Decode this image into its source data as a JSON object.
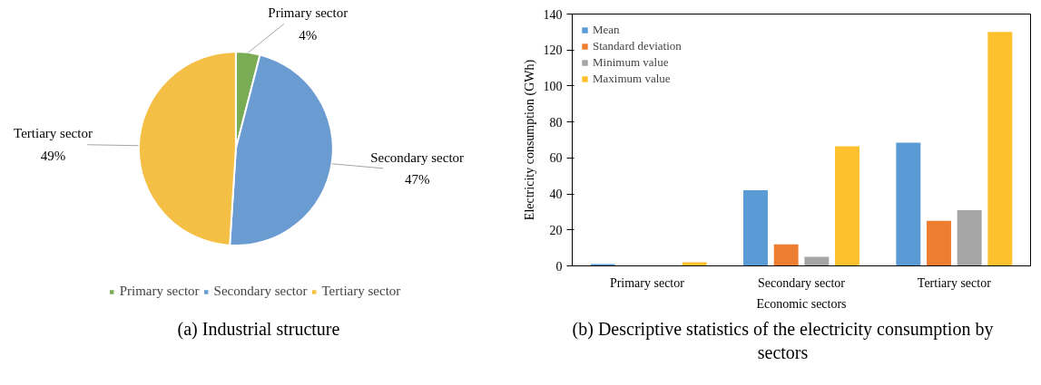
{
  "chart_data": [
    {
      "type": "pie",
      "title": "(a) Industrial structure",
      "categories": [
        "Primary sector",
        "Secondary sector",
        "Tertiary sector"
      ],
      "values": [
        4,
        47,
        49
      ],
      "value_labels": [
        "4%",
        "47%",
        "49%"
      ],
      "colors": [
        "#7aab55",
        "#6a9bd1",
        "#f4bf45"
      ],
      "legend": "bottom"
    },
    {
      "type": "bar",
      "title": "(b) Descriptive statistics of the electricity consumption by sectors",
      "xlabel": "Economic sectors",
      "ylabel": "Electricity consumption (GWh)",
      "categories": [
        "Primary  sector",
        "Secondary sector",
        "Tertiary sector"
      ],
      "series": [
        {
          "name": "Mean",
          "color": "#5b9bd5",
          "values": [
            1,
            42,
            68.5
          ]
        },
        {
          "name": "Standard deviation",
          "color": "#ed7d31",
          "values": [
            0,
            12,
            25
          ]
        },
        {
          "name": "Minimum value",
          "color": "#a5a5a5",
          "values": [
            0,
            5,
            31
          ]
        },
        {
          "name": "Maximum value",
          "color": "#ffc02d",
          "values": [
            2,
            66.5,
            130
          ]
        }
      ],
      "ylim": [
        0,
        140
      ],
      "yticks": [
        0,
        20,
        40,
        60,
        80,
        100,
        120,
        140
      ],
      "grid": false,
      "legend": "top left"
    }
  ]
}
